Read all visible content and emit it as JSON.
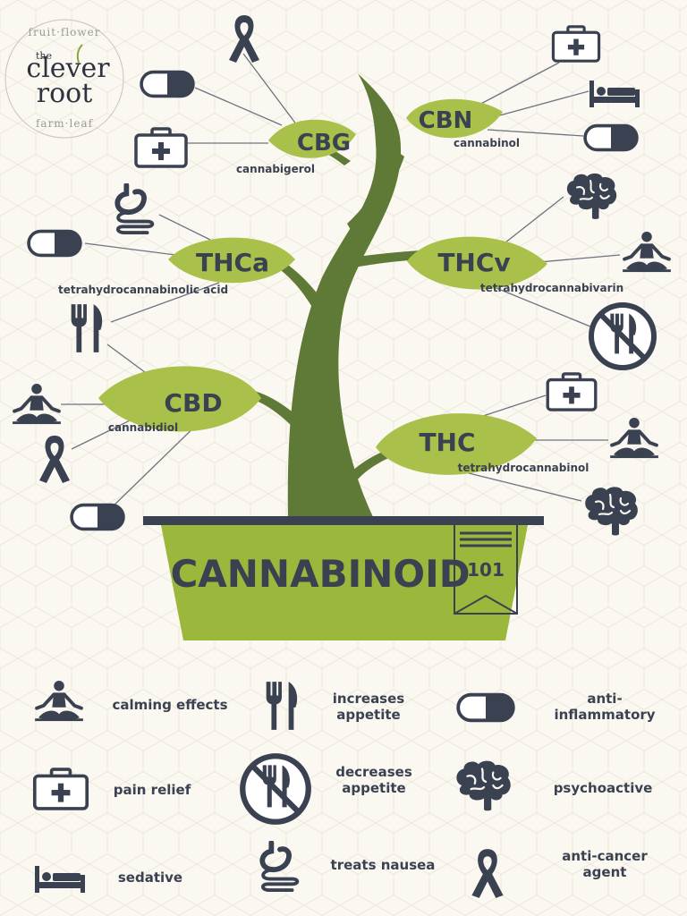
{
  "colors": {
    "navy": "#3a4150",
    "leaf": "#a9c14a",
    "stem": "#5f7a36",
    "pot": "#9cb83c",
    "background": "#fbf8f1"
  },
  "logo": {
    "arc_top": "fruit·flower",
    "the": "the",
    "line1": "clever",
    "line2": "root",
    "arc_bottom": "farm·leaf"
  },
  "title": "CANNABINOID",
  "badge": "101",
  "cannabinoids": [
    {
      "abbr": "CBG",
      "name": "cannabigerol"
    },
    {
      "abbr": "CBN",
      "name": "cannabinol"
    },
    {
      "abbr": "THCa",
      "name": "tetrahydrocannabinolic acid"
    },
    {
      "abbr": "THCv",
      "name": "tetrahydrocannabivarin"
    },
    {
      "abbr": "CBD",
      "name": "cannabidiol"
    },
    {
      "abbr": "THC",
      "name": "tetrahydrocannabinol"
    }
  ],
  "legend": [
    {
      "icon": "meditation-icon",
      "label": "calming effects"
    },
    {
      "icon": "fork-knife-icon",
      "label": "increases appetite"
    },
    {
      "icon": "pill-icon",
      "label": "anti-inflammatory"
    },
    {
      "icon": "medkit-icon",
      "label": "pain relief"
    },
    {
      "icon": "no-food-icon",
      "label": "decreases appetite"
    },
    {
      "icon": "brain-icon",
      "label": "psychoactive"
    },
    {
      "icon": "bed-icon",
      "label": "sedative"
    },
    {
      "icon": "stomach-icon",
      "label": "treats nausea"
    },
    {
      "icon": "ribbon-icon",
      "label": "anti-cancer agent"
    }
  ]
}
